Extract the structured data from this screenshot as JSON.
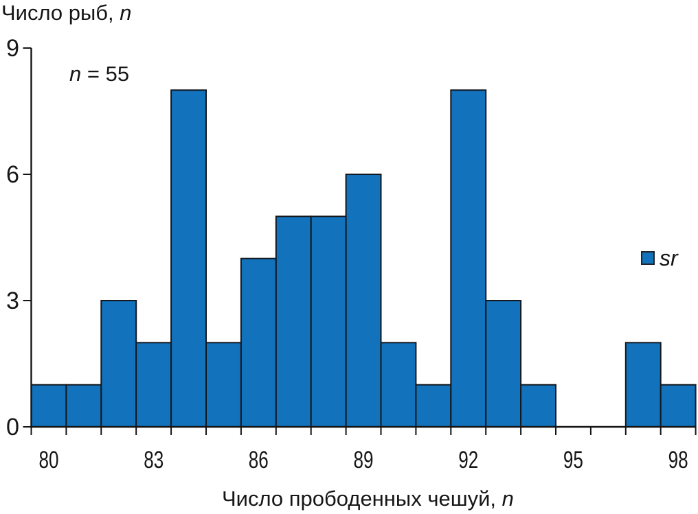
{
  "chart_data": {
    "type": "bar",
    "chart_kind": "histogram",
    "categories": [
      80,
      81,
      82,
      83,
      84,
      85,
      86,
      87,
      88,
      89,
      90,
      91,
      92,
      93,
      94,
      95,
      96,
      97,
      98
    ],
    "values": [
      1,
      1,
      3,
      2,
      8,
      2,
      4,
      5,
      5,
      6,
      2,
      1,
      8,
      3,
      1,
      0,
      0,
      2,
      1
    ],
    "series": [
      {
        "name": "sr",
        "values": [
          1,
          1,
          3,
          2,
          8,
          2,
          4,
          5,
          5,
          6,
          2,
          1,
          8,
          3,
          1,
          0,
          0,
          2,
          1
        ]
      }
    ],
    "title": "",
    "xlabel": "Число прободенных чешуй, n",
    "ylabel": "Число рыб, n",
    "annotation": "n = 55",
    "sample_size_n": 55,
    "x_labeled_ticks": [
      80,
      83,
      86,
      89,
      92,
      95,
      98
    ],
    "y_ticks": [
      0,
      3,
      6,
      9
    ],
    "ylim": [
      0,
      9
    ],
    "grid": false,
    "legend_position": "right",
    "legend_entries": [
      {
        "label": "sr",
        "color": "#1272BC"
      }
    ],
    "bar_color": "#1272BC",
    "bar_border_color": "#14181d",
    "axis_color": "#141414",
    "text_color": "#161616"
  },
  "labels": {
    "ylabel_prefix": "Число рыб, ",
    "ylabel_var": "n",
    "xlabel_prefix": "Число прободенных чешуй, ",
    "xlabel_var": "n",
    "annotation_var": "n",
    "annotation_rest": " = 55",
    "legend_label": "sr"
  }
}
